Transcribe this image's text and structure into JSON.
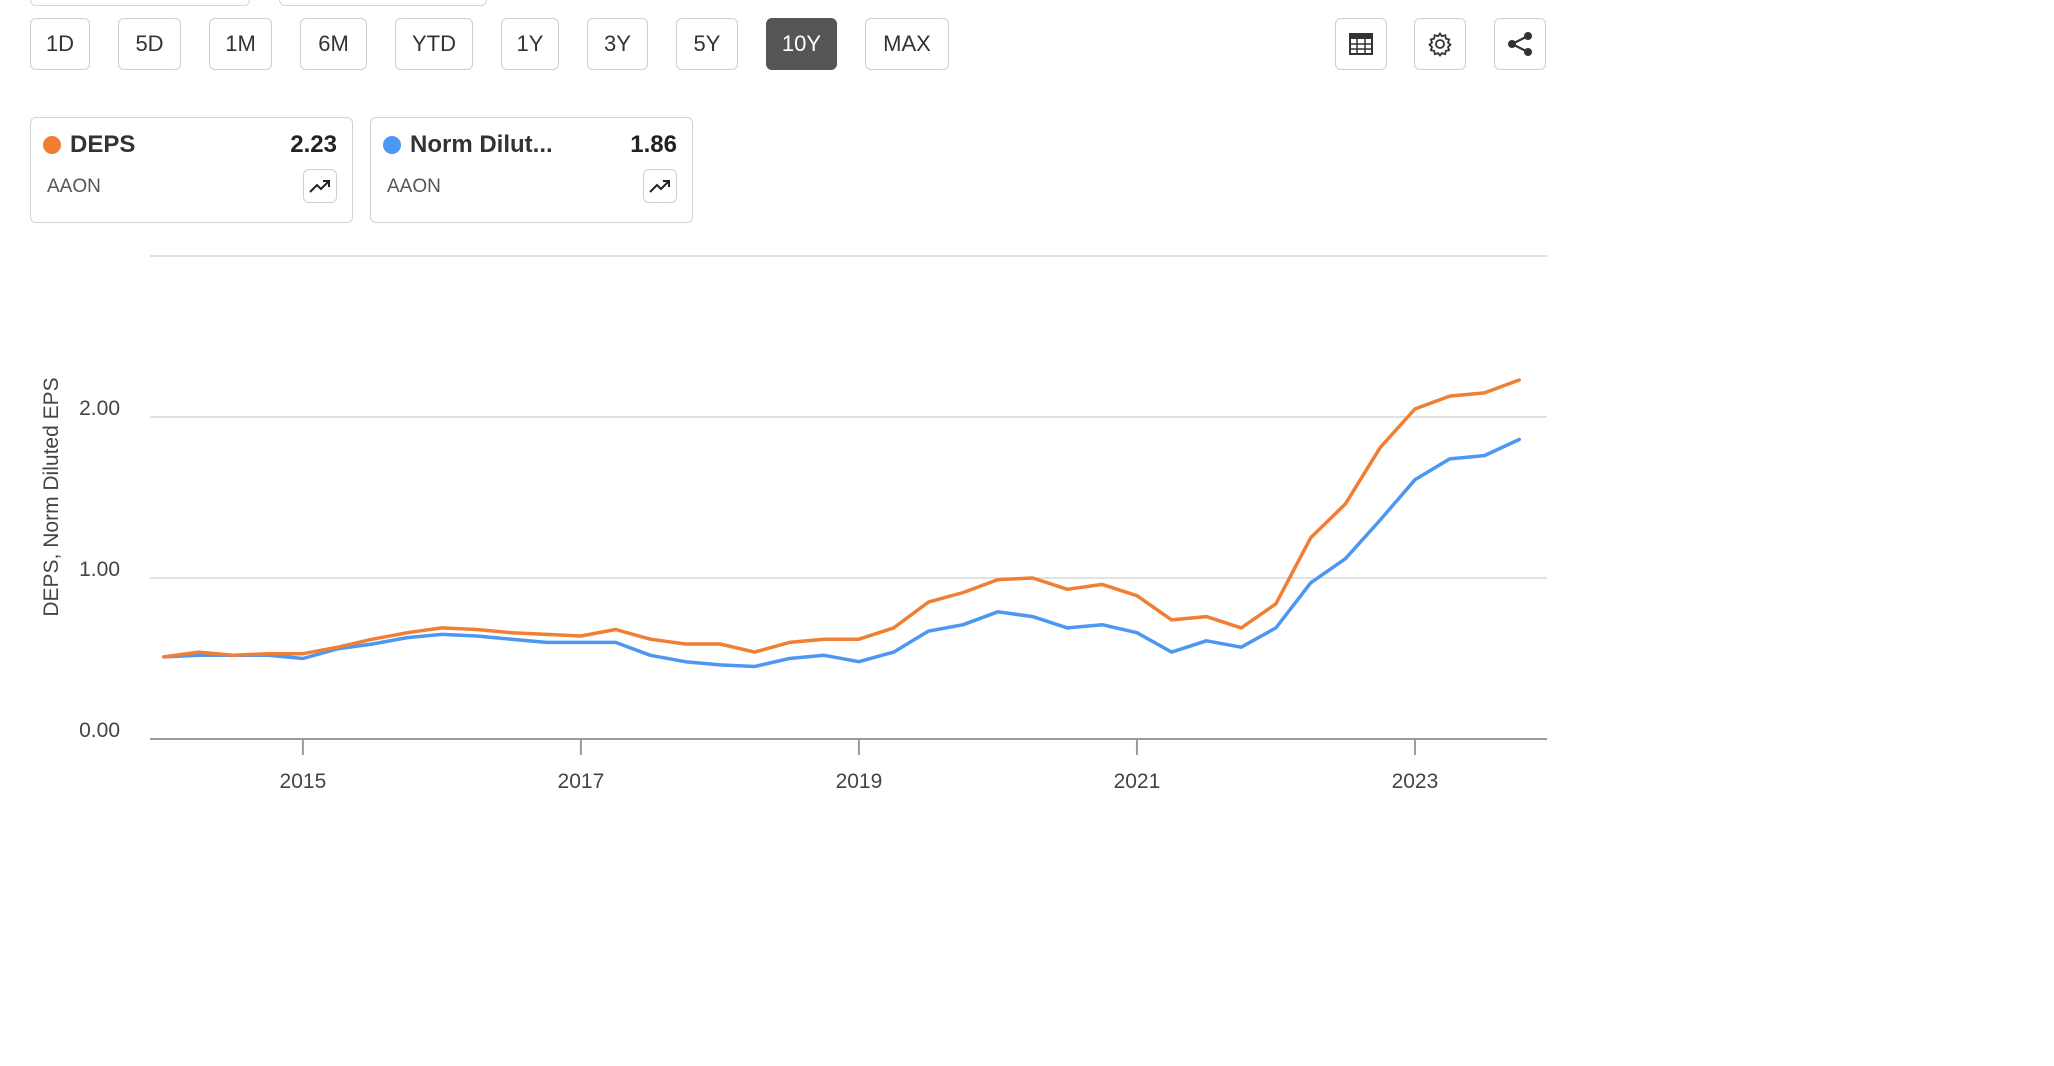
{
  "range_buttons": [
    {
      "label": "1D"
    },
    {
      "label": "5D"
    },
    {
      "label": "1M"
    },
    {
      "label": "6M"
    },
    {
      "label": "YTD"
    },
    {
      "label": "1Y"
    },
    {
      "label": "3Y"
    },
    {
      "label": "5Y"
    },
    {
      "label": "10Y",
      "active": true
    },
    {
      "label": "MAX"
    }
  ],
  "toolbar_icons": [
    "table-icon",
    "gear-icon",
    "share-icon"
  ],
  "series_cards": [
    {
      "name": "DEPS",
      "value": "2.23",
      "ticker": "AAON",
      "color": "#F07F34"
    },
    {
      "name": "Norm Dilut...",
      "value": "1.86",
      "ticker": "AAON",
      "color": "#4D97F3"
    }
  ],
  "chart_data": {
    "type": "line",
    "ylabel": "DEPS, Norm Diluted EPS",
    "ylim": [
      0,
      3.0
    ],
    "yticks": [
      {
        "value": 0.0,
        "label": "0.00"
      },
      {
        "value": 1.0,
        "label": "1.00"
      },
      {
        "value": 2.0,
        "label": "2.00"
      }
    ],
    "xlim": [
      2013.9,
      2023.95
    ],
    "xticks": [
      {
        "value": 2015,
        "label": "2015"
      },
      {
        "value": 2017,
        "label": "2017"
      },
      {
        "value": 2019,
        "label": "2019"
      },
      {
        "value": 2021,
        "label": "2021"
      },
      {
        "value": 2023,
        "label": "2023"
      }
    ],
    "grid": true,
    "x": [
      2014.0,
      2014.25,
      2014.5,
      2014.75,
      2015.0,
      2015.25,
      2015.5,
      2015.75,
      2016.0,
      2016.25,
      2016.5,
      2016.75,
      2017.0,
      2017.25,
      2017.5,
      2017.75,
      2018.0,
      2018.25,
      2018.5,
      2018.75,
      2019.0,
      2019.25,
      2019.5,
      2019.75,
      2020.0,
      2020.25,
      2020.5,
      2020.75,
      2021.0,
      2021.25,
      2021.5,
      2021.75,
      2022.0,
      2022.25,
      2022.5,
      2022.75,
      2023.0,
      2023.25,
      2023.5,
      2023.75
    ],
    "series": [
      {
        "name": "DEPS",
        "color": "#F07F34",
        "values": [
          0.51,
          0.54,
          0.52,
          0.53,
          0.53,
          0.57,
          0.62,
          0.66,
          0.69,
          0.68,
          0.66,
          0.65,
          0.64,
          0.68,
          0.62,
          0.59,
          0.59,
          0.54,
          0.6,
          0.62,
          0.62,
          0.69,
          0.85,
          0.91,
          0.99,
          1.0,
          0.93,
          0.96,
          0.89,
          0.74,
          0.76,
          0.69,
          0.84,
          1.25,
          1.46,
          1.81,
          2.05,
          2.13,
          2.15,
          2.23
        ]
      },
      {
        "name": "Norm Diluted EPS",
        "color": "#4D97F3",
        "values": [
          0.51,
          0.52,
          0.52,
          0.52,
          0.5,
          0.56,
          0.59,
          0.63,
          0.65,
          0.64,
          0.62,
          0.6,
          0.6,
          0.6,
          0.52,
          0.48,
          0.46,
          0.45,
          0.5,
          0.52,
          0.48,
          0.54,
          0.67,
          0.71,
          0.79,
          0.76,
          0.69,
          0.71,
          0.66,
          0.54,
          0.61,
          0.57,
          0.69,
          0.97,
          1.12,
          1.36,
          1.61,
          1.74,
          1.76,
          1.86
        ]
      }
    ]
  }
}
